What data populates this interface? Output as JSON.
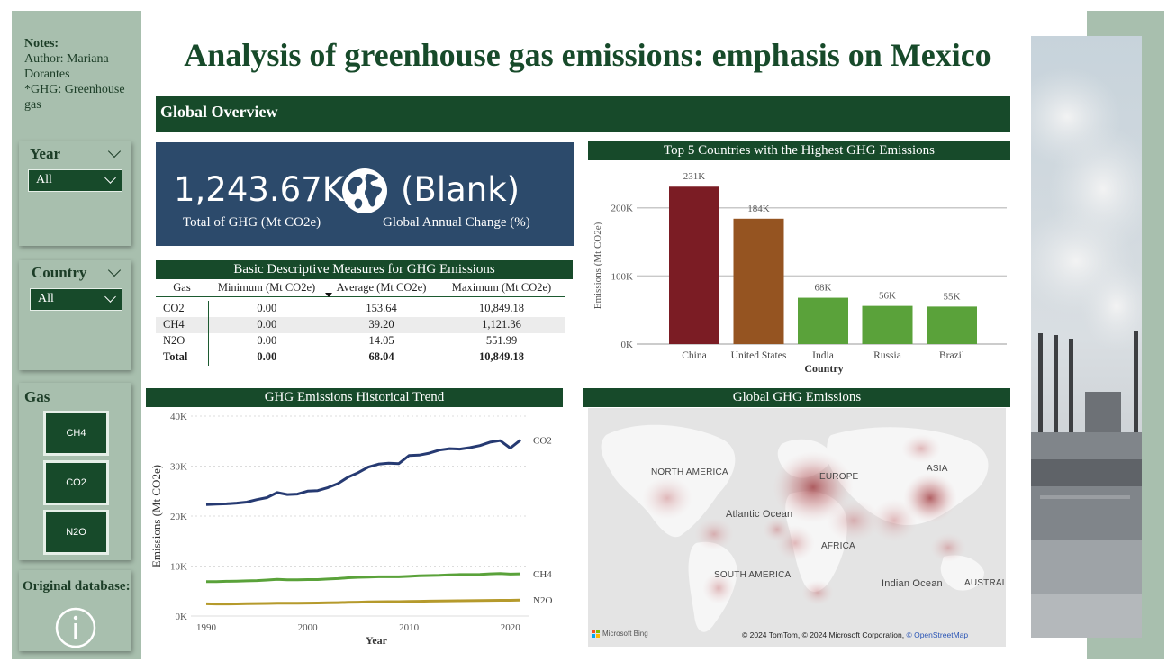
{
  "title": "Analysis of greenhouse gas emissions: emphasis on Mexico",
  "sidebar": {
    "notes_title": "Notes:",
    "notes_lines": [
      "Author: Mariana Dorantes",
      "*GHG: Greenhouse gas"
    ],
    "year_filter": {
      "label": "Year",
      "value": "All"
    },
    "country_filter": {
      "label": "Country",
      "value": "All"
    },
    "gas_label": "Gas",
    "gas_buttons": [
      "CH4",
      "CO2",
      "N2O"
    ],
    "database_label": "Original database:",
    "info_icon": "info-icon"
  },
  "overview": {
    "label": "Global Overview"
  },
  "kpi": {
    "total_value": "1,243.67K",
    "total_label": "Total of GHG (Mt CO2e)",
    "change_value": "(Blank)",
    "change_label": "Global Annual Change (%)",
    "icon": "globe-icon"
  },
  "desc_table": {
    "title": "Basic Descriptive Measures for GHG Emissions",
    "headers": [
      "Gas",
      "Minimum (Mt CO2e)",
      "Average (Mt CO2e)",
      "Maximum (Mt CO2e)"
    ],
    "rows": [
      [
        "CO2",
        "0.00",
        "153.64",
        "10,849.18"
      ],
      [
        "CH4",
        "0.00",
        "39.20",
        "1,121.36"
      ],
      [
        "N2O",
        "0.00",
        "14.05",
        "551.99"
      ]
    ],
    "total": [
      "Total",
      "0.00",
      "68.04",
      "10,849.18"
    ]
  },
  "bar_chart": {
    "title": "Top 5 Countries with the Highest GHG Emissions"
  },
  "line_chart": {
    "title": "GHG Emissions Historical Trend"
  },
  "map": {
    "title": "Global GHG Emissions",
    "labels": [
      "NORTH AMERICA",
      "EUROPE",
      "ASIA",
      "Atlantic Ocean",
      "AFRICA",
      "SOUTH AMERICA",
      "Indian Ocean",
      "AUSTRAL"
    ],
    "attribution": "© 2024 TomTom, © 2024 Microsoft Corporation,",
    "attribution_link": "© OpenStreetMap",
    "provider": "Microsoft Bing"
  },
  "colors": {
    "dark_green": "#174a2a",
    "sage": "#a8bfae",
    "kpi_bg": "#2c4a6b",
    "bar_top1": "#7b1c24",
    "bar_top2": "#955421",
    "bar_other": "#5aa23a",
    "line_co2": "#263a72",
    "line_ch4": "#5aa23a",
    "line_n2o": "#b59a2c"
  },
  "chart_data": [
    {
      "type": "bar",
      "title": "Top 5 Countries with the Highest GHG Emissions",
      "categories": [
        "China",
        "United States",
        "India",
        "Russia",
        "Brazil"
      ],
      "values": [
        231,
        184,
        68,
        56,
        55
      ],
      "value_labels": [
        "231K",
        "184K",
        "68K",
        "56K",
        "55K"
      ],
      "xlabel": "Country",
      "ylabel": "Emissions (Mt CO2e)",
      "ylim": [
        0,
        230
      ],
      "yticks": [
        0,
        100,
        200
      ],
      "ytick_labels": [
        "0K",
        "100K",
        "200K"
      ],
      "grid": true
    },
    {
      "type": "line",
      "title": "GHG Emissions Historical Trend",
      "x": [
        1990,
        1991,
        1992,
        1993,
        1994,
        1995,
        1996,
        1997,
        1998,
        1999,
        2000,
        2001,
        2002,
        2003,
        2004,
        2005,
        2006,
        2007,
        2008,
        2009,
        2010,
        2011,
        2012,
        2013,
        2014,
        2015,
        2016,
        2017,
        2018,
        2019,
        2020,
        2021
      ],
      "series": [
        {
          "name": "CO2",
          "values": [
            22300,
            22400,
            22450,
            22600,
            22800,
            23300,
            23700,
            24700,
            24300,
            24400,
            25000,
            25100,
            25700,
            26500,
            27800,
            28700,
            29800,
            30400,
            30600,
            30500,
            32100,
            32200,
            32600,
            33200,
            33500,
            33400,
            33700,
            34100,
            34800,
            35100,
            33600,
            35200
          ]
        },
        {
          "name": "CH4",
          "values": [
            6900,
            6900,
            6950,
            7000,
            7050,
            7100,
            7200,
            7350,
            7250,
            7250,
            7300,
            7300,
            7400,
            7500,
            7650,
            7750,
            7800,
            7850,
            7850,
            7850,
            7950,
            8050,
            8100,
            8150,
            8250,
            8300,
            8300,
            8350,
            8450,
            8500,
            8400,
            8450
          ]
        },
        {
          "name": "N2O",
          "values": [
            2450,
            2420,
            2420,
            2440,
            2460,
            2500,
            2520,
            2550,
            2550,
            2570,
            2600,
            2620,
            2650,
            2690,
            2740,
            2780,
            2820,
            2860,
            2880,
            2880,
            2930,
            2960,
            2990,
            3010,
            3040,
            3060,
            3080,
            3100,
            3140,
            3160,
            3150,
            3200
          ]
        }
      ],
      "xlabel": "Year",
      "ylabel": "Emissions (Mt CO2e)",
      "ylim": [
        0,
        40000
      ],
      "yticks": [
        0,
        10000,
        20000,
        30000,
        40000
      ],
      "ytick_labels": [
        "0K",
        "10K",
        "20K",
        "30K",
        "40K"
      ],
      "xticks": [
        1990,
        2000,
        2010,
        2020
      ],
      "grid": true
    }
  ]
}
